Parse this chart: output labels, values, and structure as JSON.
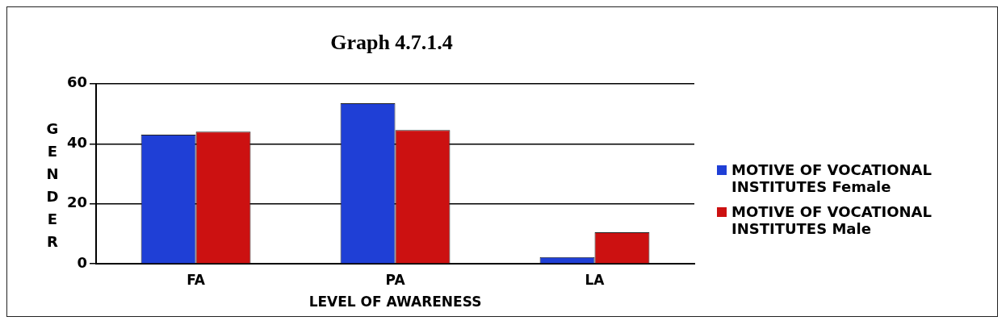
{
  "chart_data": {
    "type": "bar",
    "title": "Graph 4.7.1.4",
    "xlabel": "LEVEL OF AWARENESS",
    "ylabel": "GENDER",
    "categories": [
      "FA",
      "PA",
      "LA"
    ],
    "series": [
      {
        "name": "MOTIVE OF VOCATIONAL INSTITUTES Female",
        "color": "#1f3fd6",
        "values": [
          43,
          53.5,
          2.3
        ]
      },
      {
        "name": "MOTIVE OF VOCATIONAL INSTITUTES Male",
        "color": "#cc1111",
        "values": [
          44,
          44.6,
          10.5
        ]
      }
    ],
    "ylim": [
      0,
      60
    ],
    "yticks": [
      0,
      20,
      40,
      60
    ],
    "grid": "y",
    "legend": "right"
  }
}
